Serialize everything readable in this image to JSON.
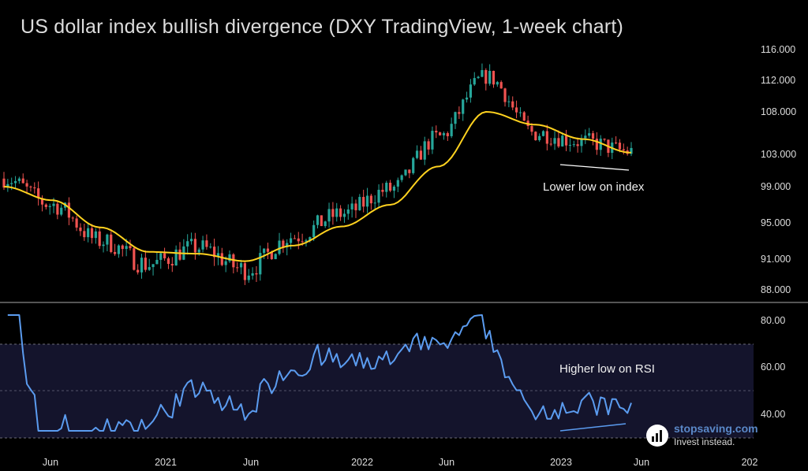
{
  "chart_data": {
    "type": "candlestick",
    "title": "US dollar index bullish divergence (DXY TradingView, 1-week chart)",
    "price_panel": {
      "y_ticks": [
        "116.000",
        "112.000",
        "108.000",
        "103.000",
        "99.000",
        "95.000",
        "91.000",
        "88.000"
      ],
      "ylim": [
        87,
        117
      ],
      "x_dates": [
        "2020-04",
        "2020-06",
        "2020-09",
        "2020-12",
        "2021-03",
        "2021-06",
        "2021-09",
        "2021-12",
        "2022-03",
        "2022-06",
        "2022-09",
        "2022-11",
        "2023-02",
        "2023-05"
      ],
      "close": [
        100.0,
        97.0,
        93.0,
        90.5,
        92.3,
        90.0,
        93.5,
        96.0,
        98.7,
        105.0,
        112.5,
        105.5,
        104.5,
        103.3
      ],
      "moving_average": [
        99.0,
        97.5,
        94.5,
        91.8,
        91.6,
        90.8,
        92.5,
        94.6,
        97.0,
        101.5,
        108.0,
        106.5,
        104.8,
        103.2
      ],
      "moving_average_color": "#ffd21f",
      "annotation": "Lower low on index"
    },
    "rsi_panel": {
      "y_ticks": [
        "80.00",
        "60.00",
        "40.00"
      ],
      "ylim": [
        30,
        82
      ],
      "band": [
        30,
        70
      ],
      "line_color": "#5b9cf0",
      "annotation": "Higher low on RSI"
    },
    "x_ticks": [
      "Jun",
      "2021",
      "Jun",
      "2022",
      "Jun",
      "2023",
      "Jun",
      "202"
    ],
    "up_color": "#26a69a",
    "down_color": "#ef5350"
  },
  "watermark": {
    "name": "stopsaving.com",
    "tagline": "Invest instead."
  }
}
